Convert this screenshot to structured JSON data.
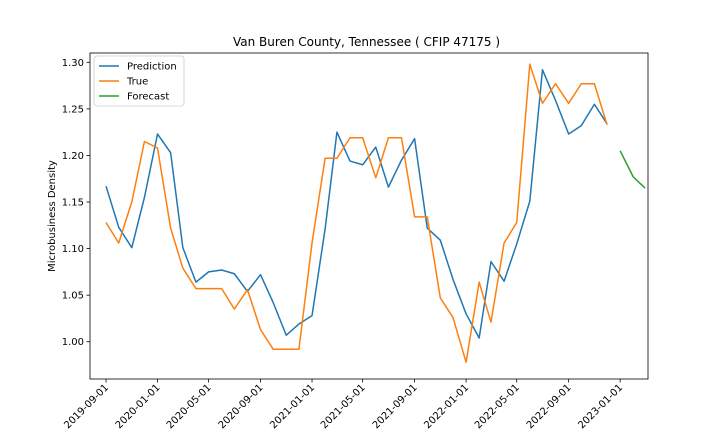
{
  "chart_data": {
    "type": "line",
    "title": "Van Buren County, Tennessee ( CFIP 47175 )",
    "xlabel": "",
    "ylabel": "Microbusiness Density",
    "ylim": [
      0.96,
      1.31
    ],
    "xlim": [
      "2019-07-25",
      "2023-03-08"
    ],
    "grid": false,
    "legend_position": "top-left",
    "x_ticks": [
      "2019-09-01",
      "2020-01-01",
      "2020-05-01",
      "2020-09-01",
      "2021-01-01",
      "2021-05-01",
      "2021-09-01",
      "2022-01-01",
      "2022-05-01",
      "2022-09-01",
      "2023-01-01"
    ],
    "y_ticks": [
      1.0,
      1.05,
      1.1,
      1.15,
      1.2,
      1.25,
      1.3
    ],
    "series": [
      {
        "name": "Prediction",
        "color": "#1f77b4",
        "x": [
          "2019-09-01",
          "2019-10-01",
          "2019-11-01",
          "2019-12-01",
          "2020-01-01",
          "2020-02-01",
          "2020-03-01",
          "2020-04-01",
          "2020-05-01",
          "2020-06-01",
          "2020-07-01",
          "2020-08-01",
          "2020-09-01",
          "2020-10-01",
          "2020-11-01",
          "2020-12-01",
          "2021-01-01",
          "2021-02-01",
          "2021-03-01",
          "2021-04-01",
          "2021-05-01",
          "2021-06-01",
          "2021-07-01",
          "2021-08-01",
          "2021-09-01",
          "2021-10-01",
          "2021-11-01",
          "2021-12-01",
          "2022-01-01",
          "2022-02-01",
          "2022-03-01",
          "2022-04-01",
          "2022-05-01",
          "2022-06-01",
          "2022-07-01",
          "2022-08-01",
          "2022-09-01",
          "2022-10-01",
          "2022-11-01",
          "2022-12-01"
        ],
        "y": [
          1.167,
          1.123,
          1.101,
          1.155,
          1.223,
          1.203,
          1.101,
          1.064,
          1.075,
          1.077,
          1.073,
          1.054,
          1.072,
          1.042,
          1.007,
          1.019,
          1.028,
          1.121,
          1.225,
          1.194,
          1.19,
          1.209,
          1.166,
          1.195,
          1.218,
          1.122,
          1.109,
          1.067,
          1.03,
          1.004,
          1.086,
          1.065,
          1.105,
          1.151,
          1.292,
          1.259,
          1.223,
          1.232,
          1.255,
          1.234
        ]
      },
      {
        "name": "True",
        "color": "#ff7f0e",
        "x": [
          "2019-09-01",
          "2019-10-01",
          "2019-11-01",
          "2019-12-01",
          "2020-01-01",
          "2020-02-01",
          "2020-03-01",
          "2020-04-01",
          "2020-05-01",
          "2020-06-01",
          "2020-07-01",
          "2020-08-01",
          "2020-09-01",
          "2020-10-01",
          "2020-11-01",
          "2020-12-01",
          "2021-01-01",
          "2021-02-01",
          "2021-03-01",
          "2021-04-01",
          "2021-05-01",
          "2021-06-01",
          "2021-07-01",
          "2021-08-01",
          "2021-09-01",
          "2021-10-01",
          "2021-11-01",
          "2021-12-01",
          "2022-01-01",
          "2022-02-01",
          "2022-03-01",
          "2022-04-01",
          "2022-05-01",
          "2022-06-01",
          "2022-07-01",
          "2022-08-01",
          "2022-09-01",
          "2022-10-01",
          "2022-11-01",
          "2022-12-01"
        ],
        "y": [
          1.128,
          1.106,
          1.15,
          1.215,
          1.208,
          1.122,
          1.079,
          1.057,
          1.057,
          1.057,
          1.035,
          1.056,
          1.013,
          0.992,
          0.992,
          0.992,
          1.106,
          1.197,
          1.197,
          1.219,
          1.219,
          1.176,
          1.219,
          1.219,
          1.134,
          1.134,
          1.047,
          1.026,
          0.978,
          1.064,
          1.021,
          1.106,
          1.128,
          1.298,
          1.256,
          1.277,
          1.256,
          1.277,
          1.277,
          1.233
        ]
      },
      {
        "name": "Forecast",
        "color": "#2ca02c",
        "x": [
          "2023-01-01",
          "2023-02-01",
          "2023-03-01"
        ],
        "y": [
          1.205,
          1.177,
          1.165
        ]
      }
    ]
  }
}
